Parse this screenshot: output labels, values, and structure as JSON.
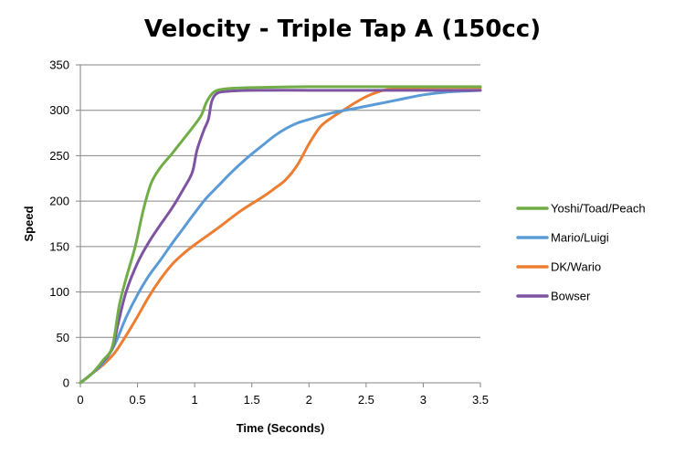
{
  "chart_data": {
    "type": "line",
    "title": "Velocity - Triple Tap A (150cc)",
    "xlabel": "Time (Seconds)",
    "ylabel": "Speed",
    "xlim": [
      0,
      3.5
    ],
    "ylim": [
      0,
      350
    ],
    "x_ticks": [
      "0",
      "0.5",
      "1",
      "1.5",
      "2",
      "2.5",
      "3",
      "3.5"
    ],
    "y_ticks": [
      "0",
      "50",
      "100",
      "150",
      "200",
      "250",
      "300",
      "350"
    ],
    "grid": "horizontal",
    "legend_position": "right",
    "series": [
      {
        "name": "Yoshi/Toad/Peach",
        "color": "#70AD47",
        "points": [
          [
            0,
            0
          ],
          [
            0.1,
            10
          ],
          [
            0.2,
            25
          ],
          [
            0.28,
            40
          ],
          [
            0.34,
            85
          ],
          [
            0.4,
            115
          ],
          [
            0.48,
            150
          ],
          [
            0.55,
            190
          ],
          [
            0.62,
            220
          ],
          [
            0.7,
            237
          ],
          [
            0.8,
            252
          ],
          [
            0.9,
            268
          ],
          [
            1.0,
            284
          ],
          [
            1.06,
            295
          ],
          [
            1.1,
            308
          ],
          [
            1.15,
            318
          ],
          [
            1.2,
            322
          ],
          [
            1.3,
            324
          ],
          [
            1.5,
            325
          ],
          [
            2.0,
            326
          ],
          [
            2.5,
            326
          ],
          [
            3.0,
            326
          ],
          [
            3.5,
            326
          ]
        ]
      },
      {
        "name": "Mario/Luigi",
        "color": "#5B9BD5",
        "points": [
          [
            0,
            0
          ],
          [
            0.1,
            10
          ],
          [
            0.2,
            22
          ],
          [
            0.3,
            42
          ],
          [
            0.4,
            72
          ],
          [
            0.5,
            97
          ],
          [
            0.6,
            118
          ],
          [
            0.7,
            135
          ],
          [
            0.8,
            153
          ],
          [
            0.9,
            170
          ],
          [
            1.0,
            187
          ],
          [
            1.1,
            203
          ],
          [
            1.2,
            216
          ],
          [
            1.3,
            229
          ],
          [
            1.4,
            241
          ],
          [
            1.5,
            252
          ],
          [
            1.6,
            262
          ],
          [
            1.7,
            272
          ],
          [
            1.8,
            280
          ],
          [
            1.9,
            286
          ],
          [
            2.0,
            290
          ],
          [
            2.2,
            297
          ],
          [
            2.4,
            302
          ],
          [
            2.6,
            307
          ],
          [
            2.8,
            312
          ],
          [
            3.0,
            317
          ],
          [
            3.2,
            320
          ],
          [
            3.5,
            322
          ]
        ]
      },
      {
        "name": "DK/Wario",
        "color": "#ED7D31",
        "points": [
          [
            0,
            0
          ],
          [
            0.1,
            10
          ],
          [
            0.2,
            20
          ],
          [
            0.3,
            33
          ],
          [
            0.4,
            52
          ],
          [
            0.5,
            73
          ],
          [
            0.6,
            95
          ],
          [
            0.7,
            114
          ],
          [
            0.8,
            130
          ],
          [
            0.9,
            142
          ],
          [
            1.0,
            152
          ],
          [
            1.2,
            170
          ],
          [
            1.4,
            189
          ],
          [
            1.6,
            205
          ],
          [
            1.7,
            214
          ],
          [
            1.8,
            224
          ],
          [
            1.9,
            240
          ],
          [
            2.0,
            263
          ],
          [
            2.1,
            282
          ],
          [
            2.2,
            292
          ],
          [
            2.3,
            300
          ],
          [
            2.4,
            308
          ],
          [
            2.5,
            315
          ],
          [
            2.6,
            320
          ],
          [
            2.7,
            323
          ],
          [
            3.0,
            325
          ],
          [
            3.5,
            325
          ]
        ]
      },
      {
        "name": "Bowser",
        "color": "#7E53A1",
        "points": [
          [
            0,
            0
          ],
          [
            0.1,
            10
          ],
          [
            0.2,
            24
          ],
          [
            0.28,
            38
          ],
          [
            0.33,
            65
          ],
          [
            0.4,
            100
          ],
          [
            0.5,
            132
          ],
          [
            0.6,
            155
          ],
          [
            0.7,
            174
          ],
          [
            0.8,
            192
          ],
          [
            0.9,
            213
          ],
          [
            0.98,
            232
          ],
          [
            1.02,
            256
          ],
          [
            1.08,
            278
          ],
          [
            1.12,
            290
          ],
          [
            1.15,
            310
          ],
          [
            1.2,
            319
          ],
          [
            1.3,
            321
          ],
          [
            1.5,
            322
          ],
          [
            2.0,
            322
          ],
          [
            2.5,
            322
          ],
          [
            3.0,
            322
          ],
          [
            3.5,
            322
          ]
        ]
      }
    ]
  }
}
